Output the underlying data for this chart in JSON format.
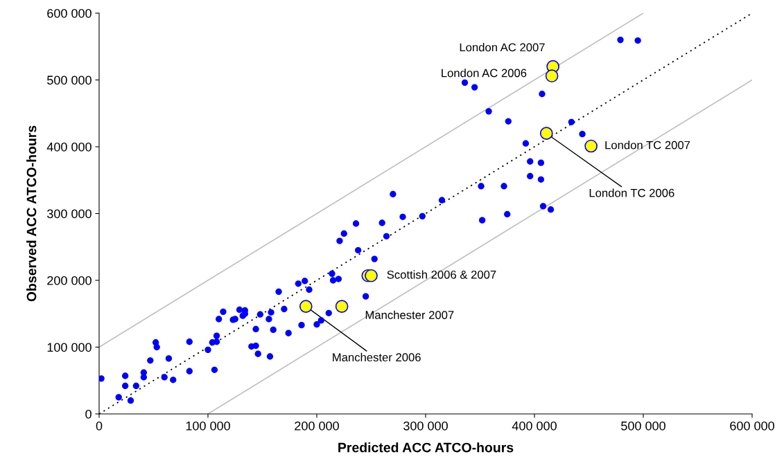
{
  "chart_data": {
    "type": "scatter",
    "xlabel": "Predicted ACC ATCO-hours",
    "ylabel": "Observed ACC ATCO-hours",
    "xlim": [
      0,
      600000
    ],
    "ylim": [
      0,
      600000
    ],
    "xticks": [
      0,
      {
        "value": 100000,
        "label": "100 000"
      },
      {
        "value": 200000,
        "label": "200 000"
      },
      {
        "value": 300000,
        "label": "300 000"
      },
      {
        "value": 400000,
        "label": "400 000"
      },
      {
        "value": 500000,
        "label": "500 000"
      },
      {
        "value": 600000,
        "label": "600 000"
      }
    ],
    "yticks": [
      0,
      {
        "value": 100000,
        "label": "100 000"
      },
      {
        "value": 200000,
        "label": "200 000"
      },
      {
        "value": 300000,
        "label": "300 000"
      },
      {
        "value": 400000,
        "label": "400 000"
      },
      {
        "value": 500000,
        "label": "500 000"
      },
      {
        "value": 600000,
        "label": "600 000"
      }
    ],
    "grid": false,
    "marker": "circle",
    "series": [
      {
        "type": "line",
        "marker": "none",
        "color": "#c0c0c0",
        "line_style": "solid",
        "x": [
          0,
          500000
        ],
        "values": [
          100000,
          600000
        ]
      },
      {
        "type": "line",
        "marker": "none",
        "color": "#c0c0c0",
        "line_style": "solid",
        "x": [
          100000,
          600000
        ],
        "values": [
          0,
          500000
        ]
      },
      {
        "type": "line",
        "marker": "none",
        "color": "#000000",
        "line_style": "dotted",
        "x": [
          0,
          600000
        ],
        "values": [
          0,
          600000
        ]
      },
      {
        "color": "#0000ff",
        "x": [
          2000,
          18000,
          24000,
          24000,
          29000,
          34000,
          41000,
          41000,
          47000,
          52000,
          53000,
          60000,
          64000,
          68000,
          83000,
          83000,
          100000,
          104000,
          106000,
          108000,
          108000,
          110000,
          114000,
          123000,
          125000,
          129000,
          132000,
          134000,
          134000,
          148000,
          140000,
          144000,
          144000,
          146000,
          157000,
          156000,
          158000,
          160000,
          165000,
          170000,
          174000,
          183000,
          186000,
          189000,
          193000,
          200000,
          204000,
          211000,
          214000,
          215000,
          220000,
          221000,
          225000,
          236000,
          238000,
          245000,
          253000,
          260000,
          264000,
          270000,
          279000,
          297000,
          315000,
          336000,
          345000,
          358000,
          351000,
          352000,
          372000,
          375000,
          376000,
          392000,
          396000,
          396000,
          406000,
          406000,
          407000,
          408000,
          415000,
          434000,
          444000,
          479000,
          495000
        ],
        "values": [
          53000,
          25000,
          57000,
          42000,
          20000,
          42000,
          62000,
          55000,
          80000,
          107000,
          100000,
          55000,
          83000,
          51000,
          108000,
          64000,
          96000,
          107000,
          66000,
          117000,
          108000,
          142000,
          153000,
          141000,
          142000,
          156000,
          147000,
          155000,
          150000,
          149000,
          101000,
          127000,
          102000,
          90000,
          86000,
          142000,
          152000,
          126000,
          183000,
          157000,
          121000,
          195000,
          133000,
          199000,
          186000,
          134000,
          140000,
          151000,
          210000,
          200000,
          202000,
          259000,
          270000,
          285000,
          245000,
          176000,
          232000,
          286000,
          266000,
          329000,
          295000,
          296000,
          320000,
          496000,
          489000,
          453000,
          341000,
          290000,
          341000,
          299000,
          438000,
          405000,
          378000,
          356000,
          376000,
          351000,
          479000,
          311000,
          306000,
          437000,
          419000,
          560000,
          559000
        ]
      },
      {
        "color": "#ffff00",
        "x": [
          417000,
          416000,
          411000,
          452000,
          247000,
          250000,
          223000,
          190000
        ],
        "values": [
          520000,
          506000,
          420000,
          401000,
          207000,
          207000,
          161000,
          161000
        ]
      }
    ],
    "annotations": [
      {
        "text": "London AC 2007",
        "x": 417000,
        "y": 520000
      },
      {
        "text": "London AC 2006",
        "x": 416000,
        "y": 506000
      },
      {
        "text": "London TC 2007",
        "x": 452000,
        "y": 401000
      },
      {
        "text": "London TC 2006",
        "x": 411000,
        "y": 420000
      },
      {
        "text": "Scottish 2006 & 2007",
        "x": 250000,
        "y": 207000
      },
      {
        "text": "Manchester 2007",
        "x": 223000,
        "y": 161000
      },
      {
        "text": "Manchester 2006",
        "x": 190000,
        "y": 161000
      }
    ]
  }
}
